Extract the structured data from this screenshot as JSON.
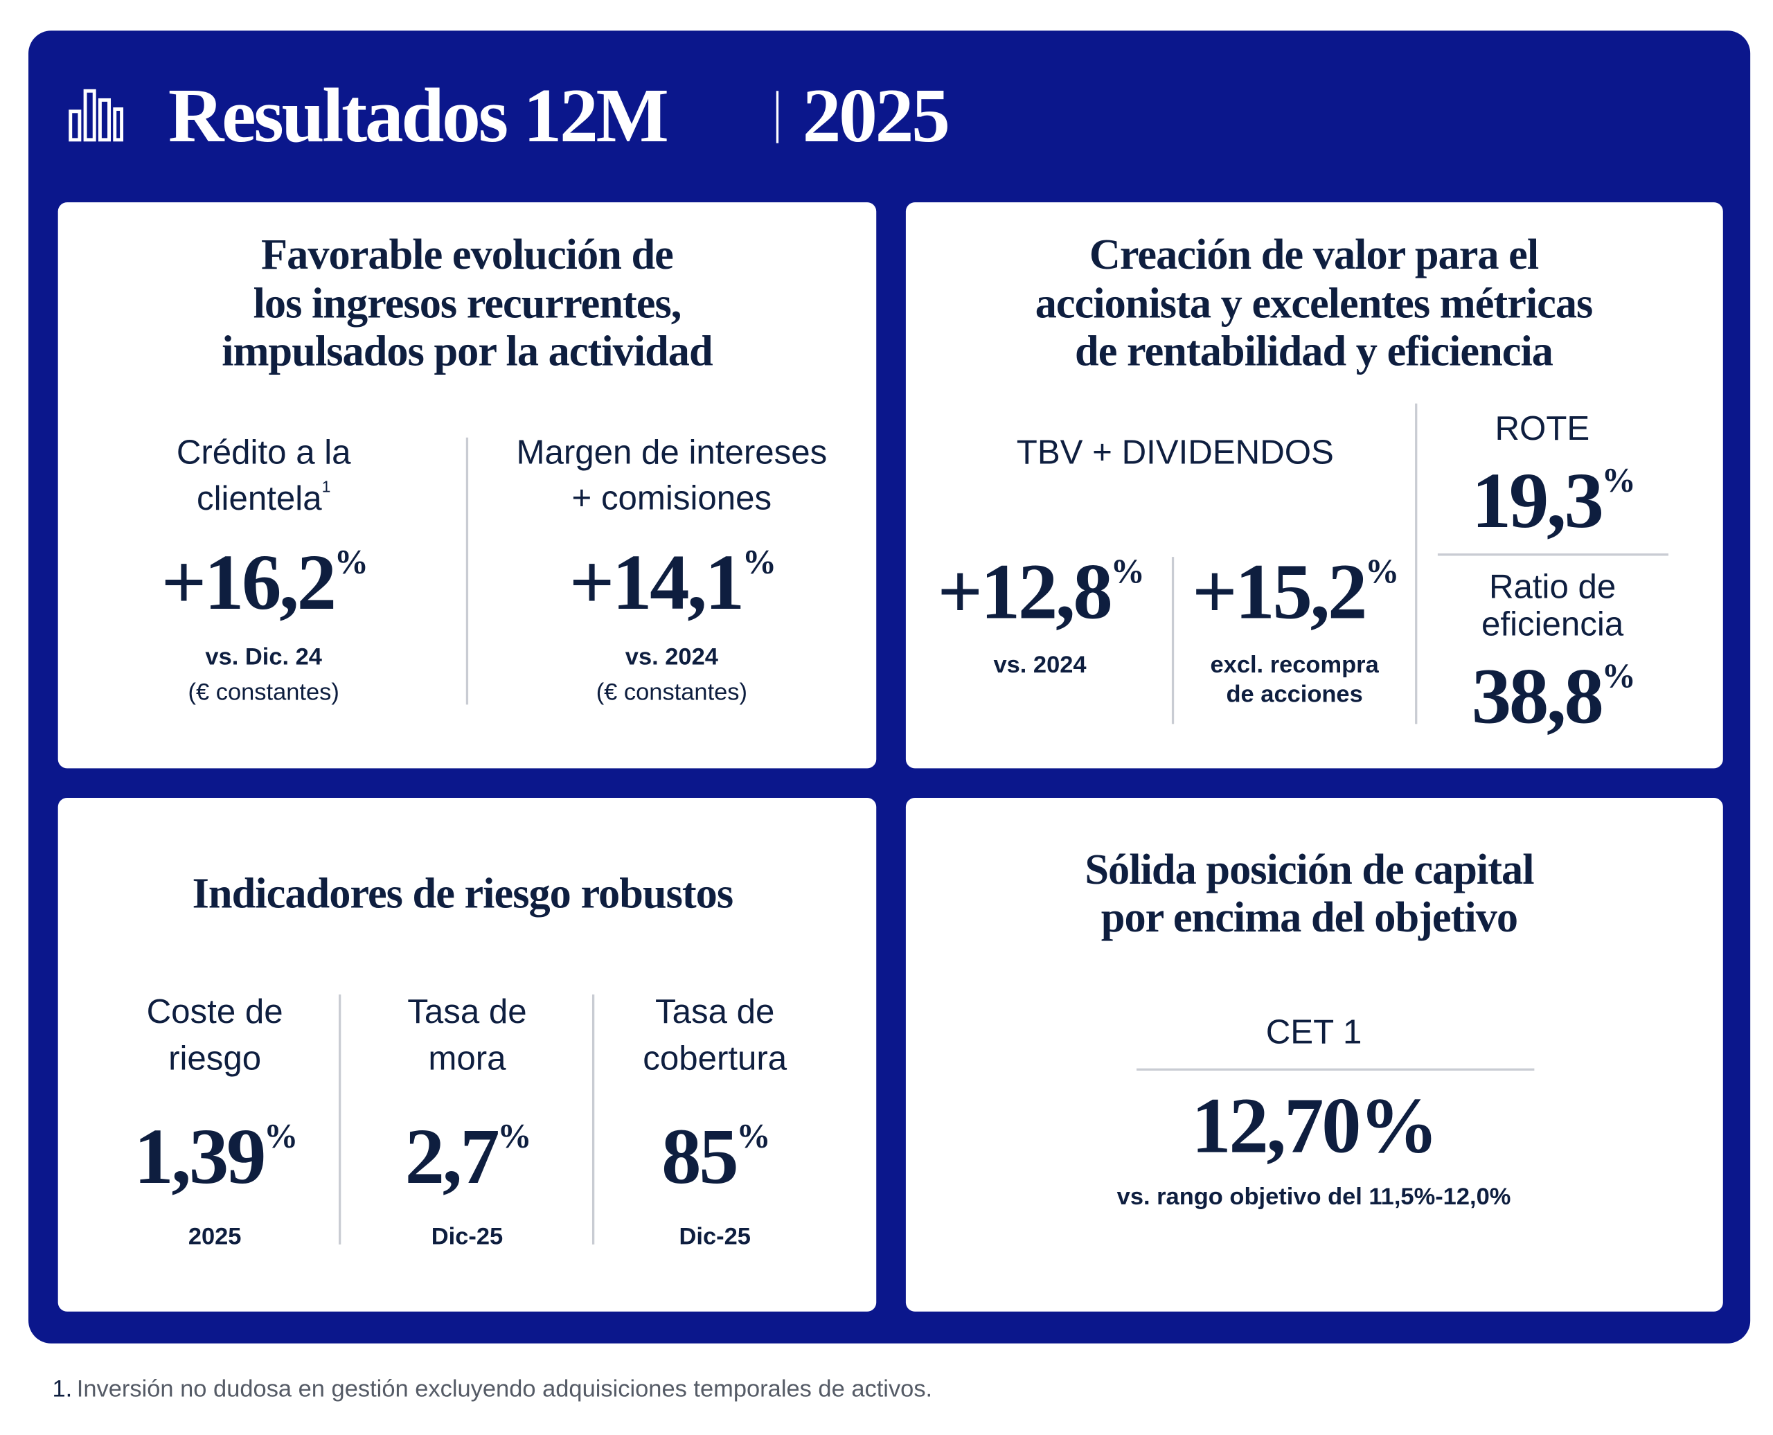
{
  "header": {
    "title": "Resultados 12M",
    "year": "2025"
  },
  "panels": [
    {
      "title": [
        "Favorable evolución de",
        "los ingresos recurrentes,",
        "impulsados por la actividad"
      ],
      "metrics": [
        {
          "label": [
            "Crédito a la",
            "clientela"
          ],
          "label_note": "1",
          "value": "+16,2",
          "unit": "%",
          "notes": [
            "vs. Dic. 24",
            "(€ constantes)"
          ]
        },
        {
          "label": [
            "Margen de intereses",
            "+ comisiones"
          ],
          "value": "+14,1",
          "unit": "%",
          "notes": [
            "vs. 2024",
            "(€ constantes)"
          ]
        }
      ]
    },
    {
      "title": [
        "Creación de valor para el",
        "accionista y excelentes métricas",
        "de rentabilidad y eficiencia"
      ],
      "group_label": "TBV + DIVIDENDOS",
      "metrics": [
        {
          "value": "+12,8",
          "unit": "%",
          "notes": [
            "vs. 2024"
          ]
        },
        {
          "value": "+15,2",
          "unit": "%",
          "notes": [
            "excl. recompra",
            "de acciones"
          ]
        }
      ],
      "side_metrics": [
        {
          "label": [
            "ROTE"
          ],
          "value": "19,3",
          "unit": "%"
        },
        {
          "label": [
            "Ratio de",
            "eficiencia"
          ],
          "value": "38,8",
          "unit": "%"
        }
      ]
    },
    {
      "title": [
        "Indicadores de riesgo robustos"
      ],
      "metrics": [
        {
          "label": [
            "Coste de",
            "riesgo"
          ],
          "value": "1,39",
          "unit": "%",
          "notes": [
            "2025"
          ]
        },
        {
          "label": [
            "Tasa de",
            "mora"
          ],
          "value": "2,7",
          "unit": "%",
          "notes": [
            "Dic-25"
          ]
        },
        {
          "label": [
            "Tasa de",
            "cobertura"
          ],
          "value": "85",
          "unit": "%",
          "notes": [
            "Dic-25"
          ]
        }
      ]
    },
    {
      "title": [
        "Sólida posición de capital",
        "por encima del objetivo"
      ],
      "metrics": [
        {
          "label": [
            "CET 1"
          ],
          "value": "12,70",
          "unit": "%",
          "notes": [
            "vs. rango objetivo del 11,5%-12,0%"
          ]
        }
      ]
    }
  ],
  "footnote": {
    "number": "1.",
    "text": "Inversión no dudosa en gestión excluyendo adquisiciones temporales de activos."
  }
}
